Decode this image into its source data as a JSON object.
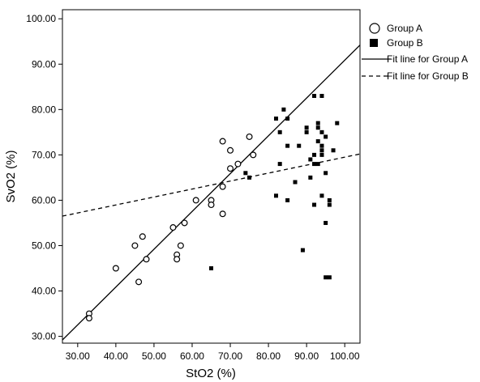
{
  "chart_data": {
    "type": "scatter",
    "title": "",
    "xlabel": "StO2 (%)",
    "ylabel": "SvO2 (%)",
    "xlim": [
      26,
      104
    ],
    "ylim": [
      28.5,
      102
    ],
    "xticks": [
      "30.00",
      "40.00",
      "50.00",
      "60.00",
      "70.00",
      "80.00",
      "90.00",
      "100.00"
    ],
    "xtick_values": [
      30,
      40,
      50,
      60,
      70,
      80,
      90,
      100
    ],
    "yticks": [
      "30.00",
      "40.00",
      "50.00",
      "60.00",
      "70.00",
      "80.00",
      "90.00",
      "100.00"
    ],
    "ytick_values": [
      30,
      40,
      50,
      60,
      70,
      80,
      90,
      100
    ],
    "grid": false,
    "legend_position": "right",
    "series": [
      {
        "name": "Group A",
        "marker": "open-circle",
        "points": [
          [
            33,
            35
          ],
          [
            33,
            34
          ],
          [
            40,
            45
          ],
          [
            45,
            50
          ],
          [
            46,
            42
          ],
          [
            47,
            52
          ],
          [
            48,
            47
          ],
          [
            55,
            54
          ],
          [
            56,
            48
          ],
          [
            56,
            47
          ],
          [
            57,
            50
          ],
          [
            58,
            55
          ],
          [
            61,
            60
          ],
          [
            65,
            60
          ],
          [
            65,
            59
          ],
          [
            68,
            73
          ],
          [
            68,
            63
          ],
          [
            68,
            57
          ],
          [
            70,
            71
          ],
          [
            70,
            67
          ],
          [
            72,
            68
          ],
          [
            75,
            74
          ],
          [
            76,
            70
          ]
        ]
      },
      {
        "name": "Group B",
        "marker": "filled-square",
        "points": [
          [
            65,
            45
          ],
          [
            74,
            66
          ],
          [
            75,
            65
          ],
          [
            82,
            78
          ],
          [
            82,
            61
          ],
          [
            83,
            75
          ],
          [
            83,
            68
          ],
          [
            84,
            80
          ],
          [
            85,
            72
          ],
          [
            85,
            78
          ],
          [
            85,
            60
          ],
          [
            87,
            64
          ],
          [
            88,
            72
          ],
          [
            89,
            49
          ],
          [
            90,
            75
          ],
          [
            90,
            76
          ],
          [
            91,
            65
          ],
          [
            91,
            69
          ],
          [
            92,
            83
          ],
          [
            92,
            70
          ],
          [
            92,
            68
          ],
          [
            92,
            59
          ],
          [
            93,
            77
          ],
          [
            93,
            76
          ],
          [
            93,
            73
          ],
          [
            93,
            68
          ],
          [
            94,
            83
          ],
          [
            94,
            75
          ],
          [
            94,
            72
          ],
          [
            94,
            71
          ],
          [
            94,
            70
          ],
          [
            94,
            61
          ],
          [
            95,
            74
          ],
          [
            95,
            66
          ],
          [
            95,
            55
          ],
          [
            95,
            43
          ],
          [
            96,
            43
          ],
          [
            96,
            60
          ],
          [
            96,
            59
          ],
          [
            97,
            71
          ],
          [
            98,
            77
          ]
        ]
      }
    ],
    "fit_lines": [
      {
        "name": "Fit line for Group A",
        "style": "solid",
        "x": [
          26,
          104
        ],
        "y": [
          29.2,
          94.2
        ]
      },
      {
        "name": "Fit line for Group B",
        "style": "dashed",
        "x": [
          26,
          104
        ],
        "y": [
          56.5,
          70.2
        ]
      }
    ]
  }
}
